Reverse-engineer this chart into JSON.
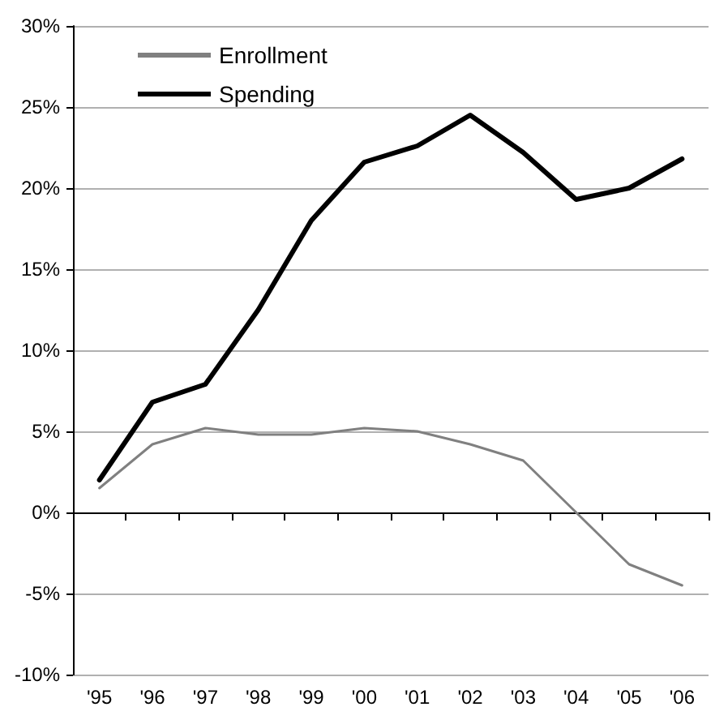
{
  "chart_data": {
    "type": "line",
    "categories": [
      "'95",
      "'96",
      "'97",
      "'98",
      "'99",
      "'00",
      "'01",
      "'02",
      "'03",
      "'04",
      "'05",
      "'06"
    ],
    "series": [
      {
        "name": "Enrollment",
        "color": "#808080",
        "values": [
          1.5,
          4.2,
          5.2,
          4.8,
          4.8,
          5.2,
          5.0,
          4.2,
          3.2,
          0,
          -3.2,
          -4.5
        ]
      },
      {
        "name": "Spending",
        "color": "#000000",
        "values": [
          2.0,
          6.8,
          7.9,
          12.5,
          18.0,
          21.6,
          22.6,
          24.5,
          22.2,
          19.3,
          20.0,
          21.8
        ]
      }
    ],
    "ylim": [
      -10,
      30
    ],
    "yticks": [
      {
        "value": -10,
        "label": "-10%"
      },
      {
        "value": -5,
        "label": "-5%"
      },
      {
        "value": 0,
        "label": "0%"
      },
      {
        "value": 5,
        "label": "5%"
      },
      {
        "value": 10,
        "label": "10%"
      },
      {
        "value": 15,
        "label": "15%"
      },
      {
        "value": 20,
        "label": "20%"
      },
      {
        "value": 25,
        "label": "25%"
      },
      {
        "value": 30,
        "label": "30%"
      }
    ],
    "grid": "y",
    "legend": "top left",
    "marker": "none",
    "line_style": "solid"
  }
}
